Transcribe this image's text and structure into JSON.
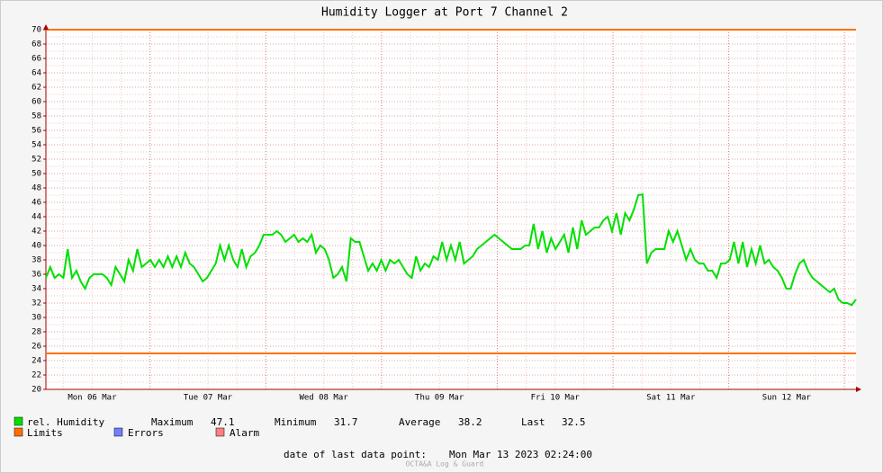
{
  "chart_data": {
    "type": "line",
    "title": "Humidity Logger at Port 7 Channel 2",
    "x_labels": [
      "Mon 06 Mar",
      "Tue 07 Mar",
      "Wed 08 Mar",
      "Thu 09 Mar",
      "Fri 10 Mar",
      "Sat 11 Mar",
      "Sun 12 Mar"
    ],
    "ylim": [
      20,
      70
    ],
    "yticks": [
      20,
      22,
      24,
      26,
      28,
      30,
      32,
      34,
      36,
      38,
      40,
      42,
      44,
      46,
      48,
      50,
      52,
      54,
      56,
      58,
      60,
      62,
      64,
      66,
      68,
      70
    ],
    "grid": true,
    "series": [
      {
        "name": "rel. Humidity",
        "color": "#00e000",
        "values": [
          35.5,
          37,
          35.5,
          36,
          35.5,
          39.5,
          35.5,
          36.5,
          35,
          34,
          35.5,
          36,
          36,
          36,
          35.5,
          34.5,
          37,
          36,
          35,
          38,
          36.5,
          39.5,
          37,
          37.5,
          38,
          37,
          38,
          37,
          38.5,
          37,
          38.5,
          37,
          39,
          37.5,
          37,
          36,
          35,
          35.5,
          36.5,
          37.5,
          40,
          38,
          40,
          38,
          37,
          39.5,
          37,
          38.5,
          39,
          40,
          41.5,
          41.5,
          41.5,
          42,
          41.5,
          40.5,
          41,
          41.5,
          40.5,
          41,
          40.5,
          41.5,
          39,
          40,
          39.5,
          38,
          35.5,
          36,
          37,
          35,
          41,
          40.5,
          40.5,
          38.5,
          36.5,
          37.5,
          36.5,
          38,
          36.5,
          38,
          37.5,
          38,
          37,
          36,
          35.5,
          38.5,
          36.5,
          37.5,
          37,
          38.5,
          38,
          40.5,
          38,
          40,
          38,
          40.5,
          37.5,
          38,
          38.5,
          39.5,
          40,
          40.5,
          41,
          41.5,
          41,
          40.5,
          40,
          39.5,
          39.5,
          39.5,
          40,
          40,
          43,
          39.5,
          42,
          39,
          41,
          39.5,
          40.5,
          41.5,
          39,
          42.5,
          39.5,
          43.5,
          41.5,
          42,
          42.5,
          42.5,
          43.5,
          44,
          42,
          44.5,
          41.5,
          44.5,
          43.5,
          45,
          47,
          47.1,
          37.5,
          39,
          39.5,
          39.5,
          39.5,
          42,
          40.5,
          42,
          40,
          38,
          39.5,
          38,
          37.5,
          37.5,
          36.5,
          36.5,
          35.5,
          37.5,
          37.5,
          38,
          40.5,
          37.5,
          40.5,
          37,
          39.5,
          37.5,
          40,
          37.5,
          38,
          37,
          36.5,
          35.5,
          34,
          34,
          36,
          37.5,
          38,
          36.5,
          35.5,
          35,
          34.5,
          34,
          33.5,
          34,
          32.5,
          32,
          32,
          31.7,
          32.5
        ]
      }
    ],
    "limits": {
      "name": "Limits",
      "color": "#ff7000",
      "values": [
        70,
        25
      ]
    },
    "other_legend": [
      {
        "name": "Errors",
        "color": "#7080ff"
      },
      {
        "name": "Alarm",
        "color": "#ff8080"
      }
    ],
    "stats": [
      {
        "label": "Maximum",
        "value": 47.1
      },
      {
        "label": "Minimum",
        "value": 31.7
      },
      {
        "label": "Average",
        "value": 38.2
      },
      {
        "label": "Last",
        "value": 32.5
      }
    ],
    "footer_label": "date of last data point:",
    "footer_value": "Mon Mar 13 2023 02:24:00",
    "watermark": "OCTA&A Log & Guard"
  }
}
